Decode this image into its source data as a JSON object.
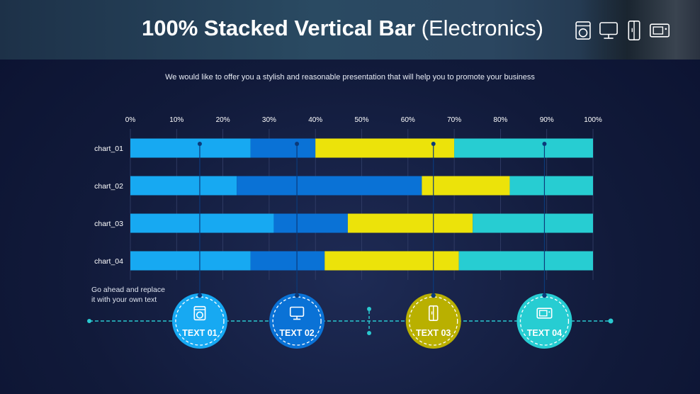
{
  "header": {
    "title_bold": "100% Stacked Vertical Bar",
    "title_light": "(Electronics)",
    "icons": [
      "washing-machine-icon",
      "monitor-icon",
      "refrigerator-icon",
      "microwave-icon"
    ]
  },
  "subtitle": "We would like to offer you a stylish and reasonable presentation that will help you to promote your business",
  "note": "Go ahead and replace it with your own text",
  "chart_data": {
    "type": "bar",
    "orientation": "horizontal",
    "stacked": "100%",
    "categories": [
      "chart_01",
      "chart_02",
      "chart_03",
      "chart_04"
    ],
    "series": [
      {
        "values": [
          26,
          23,
          31,
          26
        ],
        "color": "#17a9f2"
      },
      {
        "values": [
          14,
          40,
          16,
          16
        ],
        "color": "#0a72d6"
      },
      {
        "values": [
          30,
          19,
          27,
          29
        ],
        "color": "#ece30a"
      },
      {
        "values": [
          30,
          18,
          26,
          29
        ],
        "color": "#27cdd2"
      }
    ],
    "xticks": [
      "0%",
      "10%",
      "20%",
      "30%",
      "40%",
      "50%",
      "60%",
      "70%",
      "80%",
      "90%",
      "100%"
    ],
    "xlim": [
      0,
      100
    ],
    "grid": true
  },
  "markers": [
    {
      "label": "TEXT 01",
      "icon": "washing-machine-icon",
      "color": "#17a9f2",
      "value": 15
    },
    {
      "label": "TEXT 02",
      "icon": "monitor-icon",
      "color": "#0a72d6",
      "value": 36
    },
    {
      "label": "TEXT 03",
      "icon": "refrigerator-icon",
      "color": "#b9b000",
      "value": 65.5
    },
    {
      "label": "TEXT 04",
      "icon": "microwave-icon",
      "color": "#27cdd2",
      "value": 89.5
    }
  ]
}
